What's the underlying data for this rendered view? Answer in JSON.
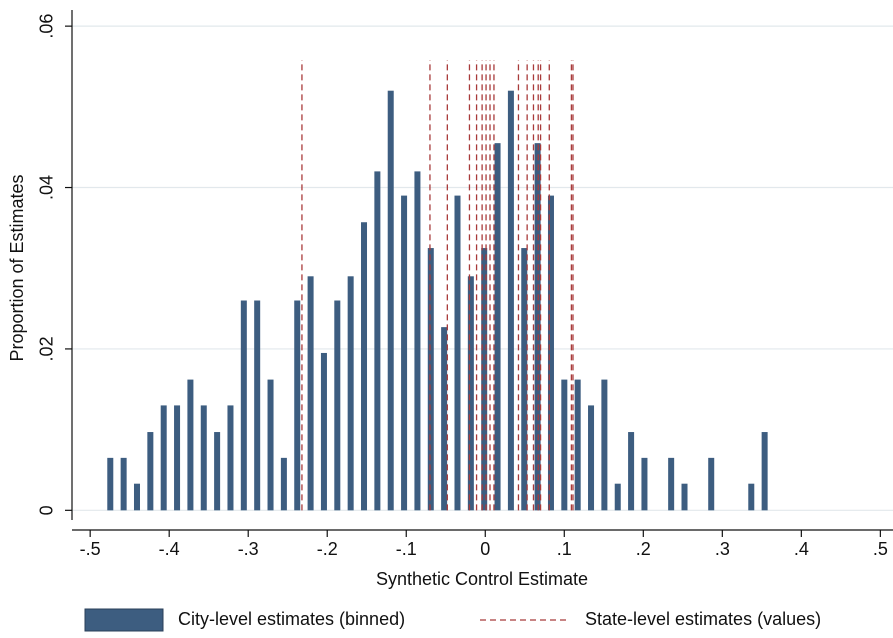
{
  "chart_data": {
    "type": "histogram",
    "xlabel": "Synthetic Control Estimate",
    "ylabel": "Proportion of Estimates",
    "bins": [
      -0.483,
      -0.4661,
      -0.4492,
      -0.4323,
      -0.4154,
      -0.3985,
      -0.3816,
      -0.3647,
      -0.3478,
      -0.3309,
      -0.314,
      -0.2971,
      -0.2802,
      -0.2633,
      -0.2464,
      -0.2295,
      -0.2126,
      -0.1957,
      -0.1788,
      -0.1619,
      -0.145,
      -0.1281,
      -0.1112,
      -0.0943,
      -0.0774,
      -0.0605,
      -0.0436,
      -0.0267,
      -0.0098,
      0.0071,
      0.024,
      0.0409,
      0.0578,
      0.0747,
      0.0916,
      0.1085,
      0.1254,
      0.1423,
      0.1592,
      0.1761,
      0.193,
      0.2099,
      0.2268,
      0.2437,
      0.2606,
      0.2775,
      0.2944,
      0.3113,
      0.3282,
      0.3451,
      0.362
    ],
    "series": [
      {
        "name": "City-level estimates (binned)",
        "color": "#3d5d80",
        "values": [
          0.0065,
          0.0065,
          0.0033,
          0.0097,
          0.013,
          0.013,
          0.0162,
          0.013,
          0.0097,
          0.013,
          0.026,
          0.026,
          0.0162,
          0.0065,
          0.026,
          0.029,
          0.0195,
          0.026,
          0.029,
          0.0357,
          0.042,
          0.052,
          0.039,
          0.042,
          0.0325,
          0.0227,
          0.039,
          0.029,
          0.0325,
          0.0455,
          0.052,
          0.0325,
          0.0455,
          0.039,
          0.0162,
          0.0162,
          0.013,
          0.0162,
          0.0033,
          0.0097,
          0.0065,
          0,
          0.0065,
          0.0033,
          0,
          0.0065,
          0,
          0,
          0.0033,
          0.0097
        ]
      },
      {
        "name": "State-level estimates (values)",
        "color": "#a83a3a",
        "type": "vline",
        "x": [
          -0.232,
          -0.07,
          -0.048,
          -0.02,
          -0.011,
          -0.004,
          0.001,
          0.006,
          0.011,
          0.042,
          0.053,
          0.061,
          0.067,
          0.07,
          0.081,
          0.109,
          0.111
        ]
      }
    ],
    "xlim": [
      -0.523,
      0.516
    ],
    "ylim": [
      -0.0012,
      0.062
    ],
    "xticks": [
      {
        "value": -0.5,
        "label": "-.5"
      },
      {
        "value": -0.4,
        "label": "-.4"
      },
      {
        "value": -0.3,
        "label": "-.3"
      },
      {
        "value": -0.2,
        "label": "-.2"
      },
      {
        "value": -0.1,
        "label": "-.1"
      },
      0,
      {
        "value": 0.1,
        "label": ".1"
      },
      {
        "value": 0.2,
        "label": ".2"
      },
      {
        "value": 0.3,
        "label": ".3"
      },
      {
        "value": 0.4,
        "label": ".4"
      },
      {
        "value": 0.5,
        "label": ".5"
      }
    ],
    "yticks": [
      0,
      {
        "value": 0.02,
        "label": ".02"
      },
      {
        "value": 0.04,
        "label": ".04"
      },
      {
        "value": 0.06,
        "label": ".06"
      }
    ],
    "grid": true,
    "legend": "bottom"
  }
}
